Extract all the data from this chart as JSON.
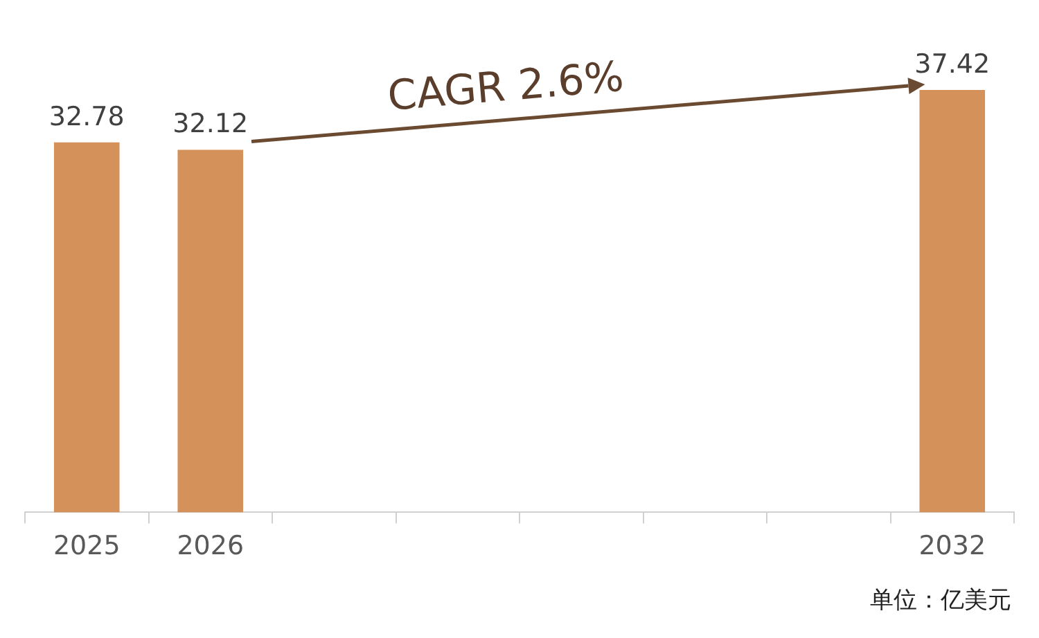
{
  "chart_data": {
    "type": "bar",
    "categories": [
      "2025",
      "2026",
      null,
      null,
      null,
      null,
      null,
      "2032"
    ],
    "values": [
      32.78,
      32.12,
      null,
      null,
      null,
      null,
      null,
      37.42
    ],
    "color": "#d4915a",
    "data_labels": true,
    "grid": false,
    "legend": false,
    "tick_labels": "x",
    "annotations": [
      "CAGR 2.6%",
      "单位：亿美元"
    ]
  }
}
